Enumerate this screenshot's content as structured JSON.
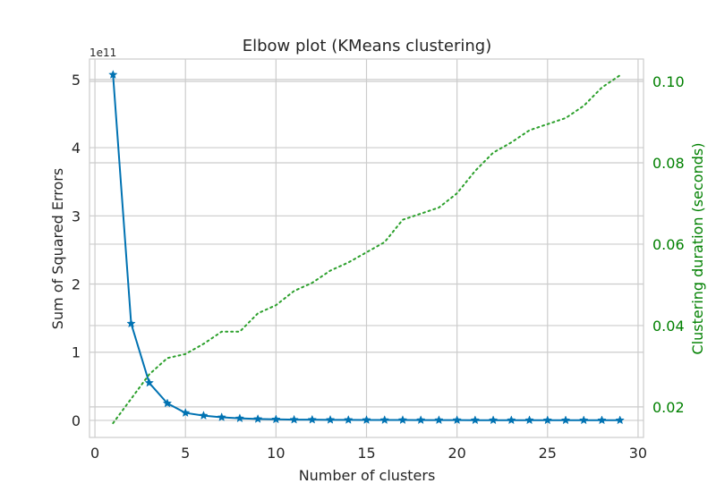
{
  "chart_data": {
    "type": "line",
    "title": "Elbow plot (KMeans clustering)",
    "xlabel": "Number of clusters",
    "ylabel": "Sum of Squared Errors",
    "y2label": "Clustering duration (seconds)",
    "y_offset_label": "1e11",
    "xlim": [
      -0.3,
      30.3
    ],
    "ylim": [
      -0.25,
      5.3
    ],
    "y2lim": [
      0.0125,
      0.1055
    ],
    "x_ticks": [
      0,
      5,
      10,
      15,
      20,
      25,
      30
    ],
    "y_ticks": [
      0,
      1,
      2,
      3,
      4,
      5
    ],
    "y2_ticks": [
      0.02,
      0.04,
      0.06,
      0.08,
      0.1
    ],
    "y2_tick_labels": [
      "0.02",
      "0.04",
      "0.06",
      "0.08",
      "0.10"
    ],
    "grid": true,
    "colors": {
      "sse": "#0072b2",
      "duration": "#2ca02c",
      "right_axis_text": "#008000"
    },
    "series": [
      {
        "axis": "left",
        "marker": "star",
        "x": [
          1,
          2,
          3,
          4,
          5,
          6,
          7,
          8,
          9,
          10,
          11,
          12,
          13,
          14,
          15,
          16,
          17,
          18,
          19,
          20,
          21,
          22,
          23,
          24,
          25,
          26,
          27,
          28,
          29
        ],
        "values": [
          5.07,
          1.42,
          0.55,
          0.25,
          0.11,
          0.07,
          0.045,
          0.03,
          0.02,
          0.015,
          0.01,
          0.01,
          0.008,
          0.007,
          0.006,
          0.005,
          0.005,
          0.004,
          0.004,
          0.004,
          0.003,
          0.003,
          0.003,
          0.003,
          0.002,
          0.002,
          0.002,
          0.002,
          0.002
        ]
      },
      {
        "axis": "right",
        "style": "dotted",
        "x": [
          1,
          2,
          3,
          4,
          5,
          6,
          7,
          8,
          9,
          10,
          11,
          12,
          13,
          14,
          15,
          16,
          17,
          18,
          19,
          20,
          21,
          22,
          23,
          24,
          25,
          26,
          27,
          28,
          29
        ],
        "values": [
          0.016,
          0.022,
          0.028,
          0.032,
          0.033,
          0.0355,
          0.0385,
          0.0385,
          0.043,
          0.045,
          0.0485,
          0.0505,
          0.0535,
          0.0555,
          0.058,
          0.0605,
          0.066,
          0.0675,
          0.069,
          0.0725,
          0.078,
          0.0825,
          0.085,
          0.088,
          0.0895,
          0.091,
          0.094,
          0.0985,
          0.1015
        ]
      }
    ]
  }
}
